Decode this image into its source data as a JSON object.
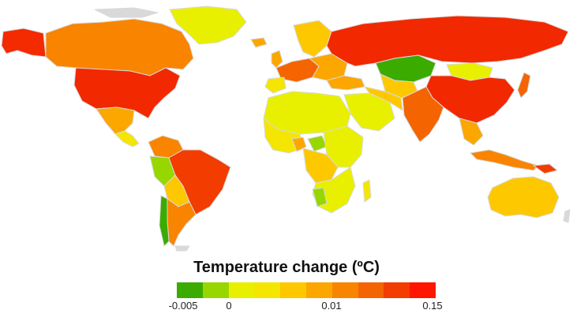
{
  "legend": {
    "title": "Temperature change (ºC)",
    "colors": [
      "#3cab00",
      "#98d600",
      "#e8f000",
      "#f4e600",
      "#fdc800",
      "#fca600",
      "#f98400",
      "#f46400",
      "#f23c00",
      "#ff1500"
    ],
    "ticks": [
      {
        "label": "-0.005",
        "value": -0.005
      },
      {
        "label": "0",
        "value": 0
      },
      {
        "label": "0.01",
        "value": 0.01
      },
      {
        "label": "0.15",
        "value": 0.15
      }
    ]
  },
  "palette": {
    "no_data": "#d9d9d9",
    "border": "#d9d9d9"
  }
}
